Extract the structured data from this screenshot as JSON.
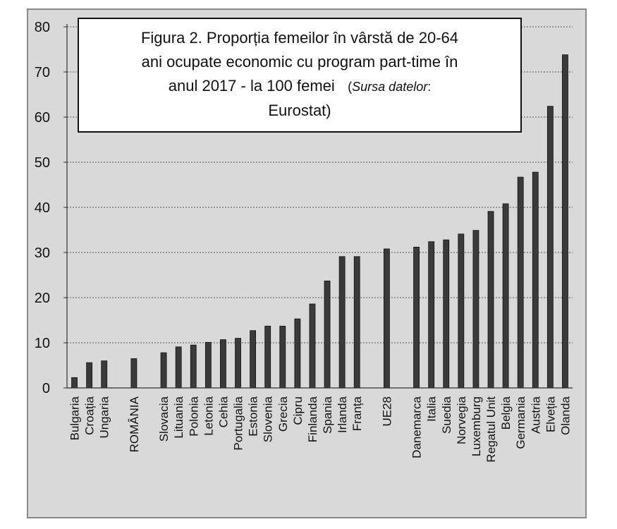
{
  "chart_data": {
    "type": "bar",
    "title": {
      "line1": "Figura 2. Proporția  femeilor în vârstă de 20-64",
      "line2": "ani ocupate economic cu program part-time în",
      "line3_main": "anul 2017  - la 100 femei",
      "source_label": "Sursa datelor",
      "source_sep": ":",
      "line4": "Eurostat)"
    },
    "ylim": [
      0,
      80
    ],
    "yticks": [
      "0",
      "10",
      "20",
      "30",
      "40",
      "50",
      "60",
      "70",
      "80"
    ],
    "grid": true,
    "legend": "none",
    "bar_color": "#3a3a3a",
    "categories": [
      "Bulgaria",
      "Croația",
      "Ungaria",
      "",
      "ROMÂNIA",
      "",
      "Slovacia",
      "Lituania",
      "Polonia",
      "Letonia",
      "Cehia",
      "Portugalia",
      "Estonia",
      "Slovenia",
      "Grecia",
      "Cipru",
      "Finlanda",
      "Spania",
      "Irlanda",
      "Franța",
      "",
      "UE28",
      "",
      "Danemarca",
      "Italia",
      "Suedia",
      "Norvegia",
      "Luxemburg",
      "Regatul Unit",
      "Belgia",
      "Germania",
      "Austria",
      "Elveția",
      "Olanda"
    ],
    "values": [
      2.3,
      5.6,
      6.0,
      null,
      6.5,
      null,
      7.8,
      9.1,
      9.5,
      10.1,
      10.7,
      11.0,
      12.7,
      13.7,
      13.7,
      15.3,
      18.6,
      23.7,
      29.1,
      29.1,
      null,
      30.8,
      null,
      31.2,
      32.4,
      32.8,
      34.1,
      34.9,
      39.1,
      40.8,
      46.7,
      47.8,
      62.4,
      73.8
    ]
  }
}
